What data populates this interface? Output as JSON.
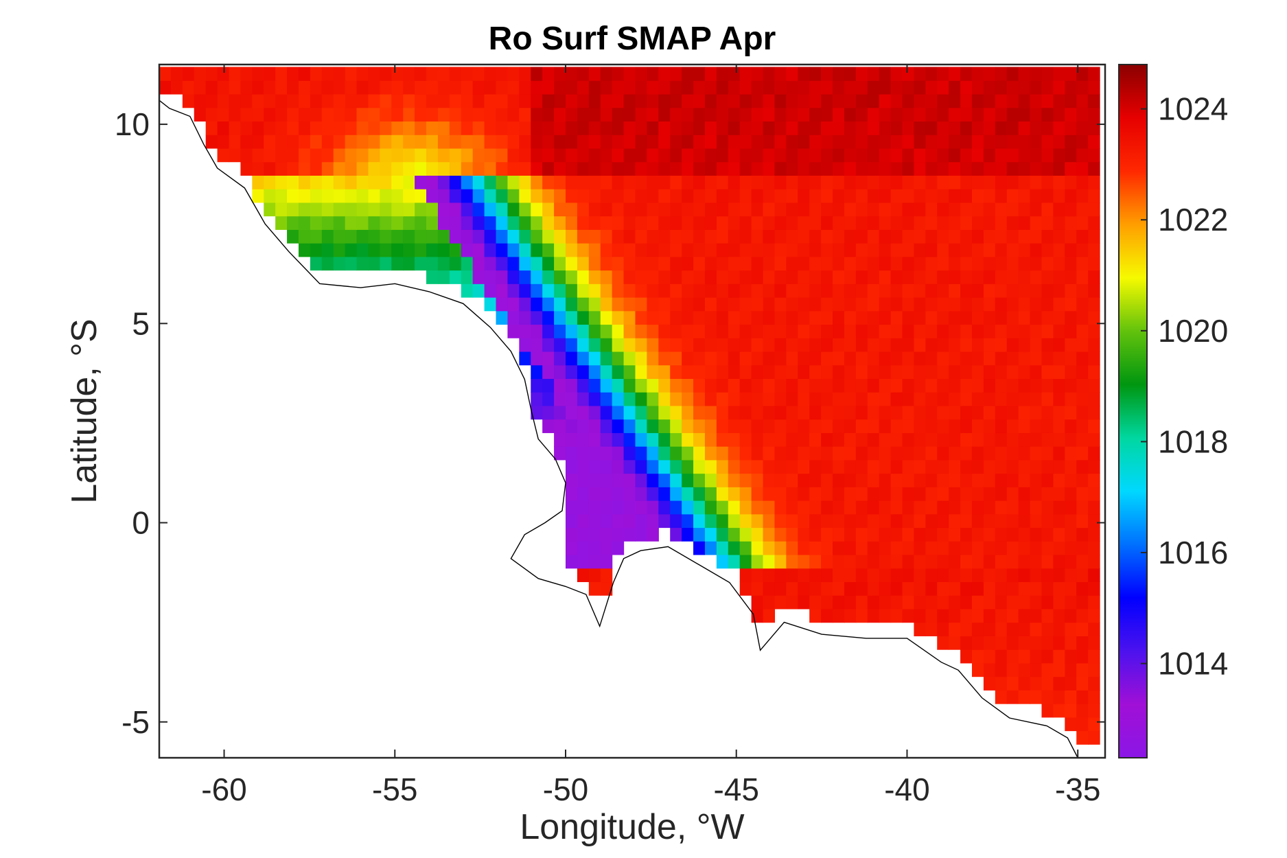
{
  "chart_data": {
    "type": "heatmap",
    "title": "Ro Surf SMAP Apr",
    "xlabel": "Longitude, °W",
    "ylabel": "Latitude, °S",
    "xlim": [
      -61.9,
      -34.2
    ],
    "ylim": [
      -5.9,
      11.5
    ],
    "x_ticks": [
      -60,
      -55,
      -50,
      -45,
      -40,
      -35
    ],
    "y_ticks": [
      -5,
      0,
      5,
      10
    ],
    "colorbar": {
      "min": 1012.3,
      "max": 1024.8,
      "ticks": [
        1014,
        1016,
        1018,
        1020,
        1022,
        1024
      ],
      "colormap": [
        "#8b16e6",
        "#a010d6",
        "#4c12ee",
        "#0000ff",
        "#0070ff",
        "#00d8ff",
        "#00d7a0",
        "#009610",
        "#62c20c",
        "#f6fa00",
        "#ff9e00",
        "#ff2800",
        "#e60000",
        "#8b0000"
      ]
    },
    "grid": false,
    "colors": {
      "land": "#ffffff",
      "coastline": "#000000",
      "axes": "#262626"
    }
  }
}
